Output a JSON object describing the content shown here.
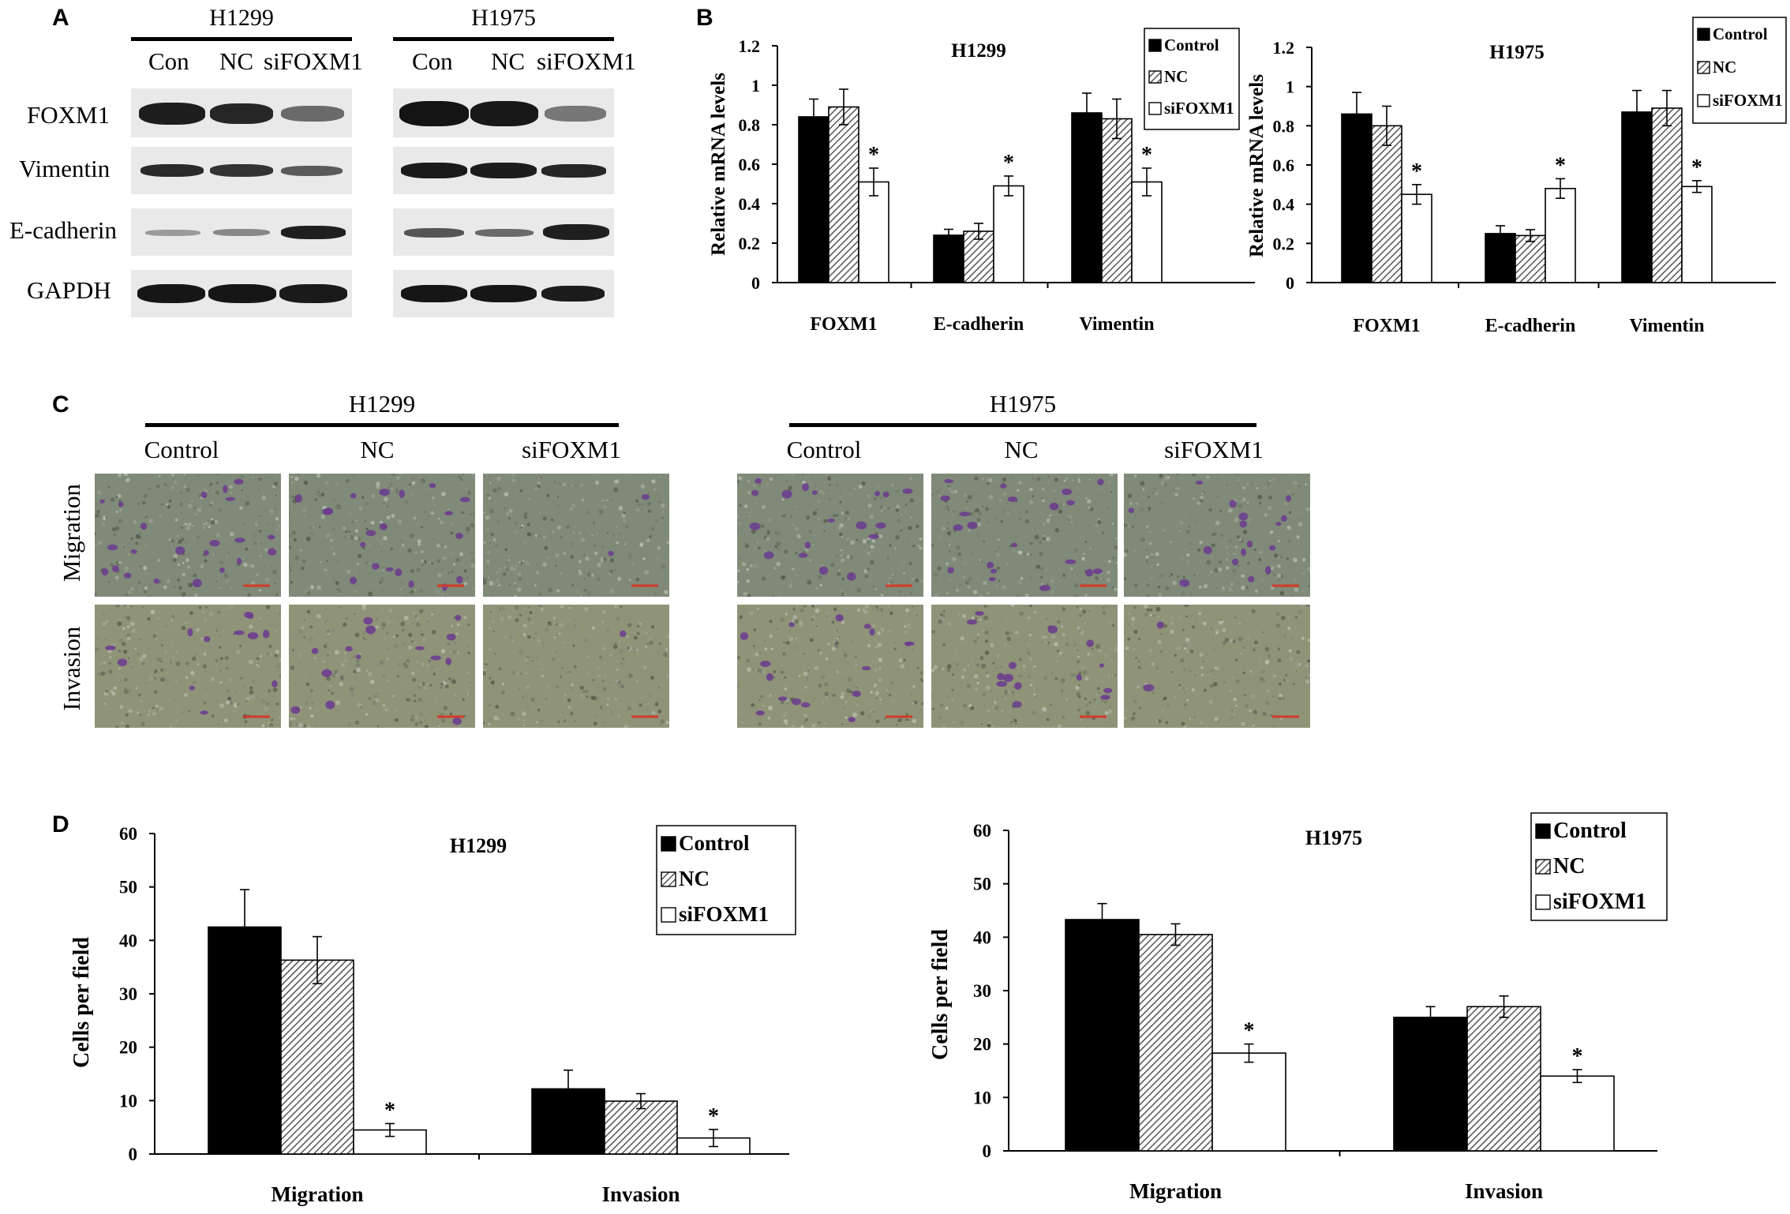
{
  "panels": {
    "A": "A",
    "B": "B",
    "C": "C",
    "D": "D"
  },
  "colors": {
    "control": "#000000",
    "nc_hatch": "#555555",
    "sifoxm1": "#ffffff",
    "crystal_violet": "#6b3a8f",
    "scale_bar": "#d23a2a"
  },
  "western_blot": {
    "cell_lines": [
      {
        "name": "H1299",
        "lanes": [
          "Con",
          "NC",
          "siFOXM1"
        ]
      },
      {
        "name": "H1975",
        "lanes": [
          "Con",
          "NC",
          "siFOXM1"
        ]
      }
    ],
    "proteins": [
      "FOXM1",
      "Vimentin",
      "E-cadherin",
      "GAPDH"
    ]
  },
  "micrographs": {
    "cell_lines": [
      "H1299",
      "H1975"
    ],
    "conditions": [
      "Control",
      "NC",
      "siFOXM1"
    ],
    "assays": [
      "Migration",
      "Invasion"
    ]
  },
  "chart_data": [
    {
      "panel": "B",
      "type": "bar",
      "title": "H1299",
      "ylabel": "Relative mRNA levels",
      "ylim": [
        0,
        1.2
      ],
      "yticks": [
        "0",
        "0.2",
        "0.4",
        "0.6",
        "0.8",
        "1",
        "1.2"
      ],
      "categories": [
        "FOXM1",
        "E-cadherin",
        "Vimentin"
      ],
      "series": [
        {
          "name": "Control",
          "values": [
            0.84,
            0.24,
            0.86
          ],
          "errors": [
            0.09,
            0.03,
            0.1
          ]
        },
        {
          "name": "NC",
          "values": [
            0.89,
            0.26,
            0.83
          ],
          "errors": [
            0.09,
            0.04,
            0.1
          ]
        },
        {
          "name": "siFOXM1",
          "values": [
            0.51,
            0.49,
            0.51
          ],
          "errors": [
            0.07,
            0.05,
            0.07
          ]
        }
      ],
      "significance": [
        "*",
        "*",
        "*"
      ],
      "legend": "top-right"
    },
    {
      "panel": "B",
      "type": "bar",
      "title": "H1975",
      "ylabel": "Relative mRNA levels",
      "ylim": [
        0,
        1.2
      ],
      "yticks": [
        "0",
        "0.2",
        "0.4",
        "0.6",
        "0.8",
        "1",
        "1.2"
      ],
      "categories": [
        "FOXM1",
        "E-cadherin",
        "Vimentin"
      ],
      "series": [
        {
          "name": "Control",
          "values": [
            0.86,
            0.25,
            0.87
          ],
          "errors": [
            0.11,
            0.04,
            0.11
          ]
        },
        {
          "name": "NC",
          "values": [
            0.8,
            0.24,
            0.89
          ],
          "errors": [
            0.1,
            0.03,
            0.09
          ]
        },
        {
          "name": "siFOXM1",
          "values": [
            0.45,
            0.48,
            0.49
          ],
          "errors": [
            0.05,
            0.05,
            0.03
          ]
        }
      ],
      "significance": [
        "*",
        "*",
        "*"
      ],
      "legend": "top-right"
    },
    {
      "panel": "D",
      "type": "bar",
      "title": "H1299",
      "ylabel": "Cells per field",
      "ylim": [
        0,
        60
      ],
      "yticks": [
        "0",
        "10",
        "20",
        "30",
        "40",
        "50",
        "60"
      ],
      "categories": [
        "Migration",
        "Invasion"
      ],
      "series": [
        {
          "name": "Control",
          "values": [
            42.5,
            12.2
          ],
          "errors": [
            7.0,
            3.5
          ]
        },
        {
          "name": "NC",
          "values": [
            36.3,
            9.9
          ],
          "errors": [
            4.4,
            1.4
          ]
        },
        {
          "name": "siFOXM1",
          "values": [
            4.5,
            3.0
          ],
          "errors": [
            1.2,
            1.6
          ]
        }
      ],
      "significance": [
        "*",
        "*"
      ],
      "legend": "top-right"
    },
    {
      "panel": "D",
      "type": "bar",
      "title": "H1975",
      "ylabel": "Cells per field",
      "ylim": [
        0,
        60
      ],
      "yticks": [
        "0",
        "10",
        "20",
        "30",
        "40",
        "50",
        "60"
      ],
      "categories": [
        "Migration",
        "Invasion"
      ],
      "series": [
        {
          "name": "Control",
          "values": [
            43.3,
            25.0
          ],
          "errors": [
            3.0,
            2.0
          ]
        },
        {
          "name": "NC",
          "values": [
            40.5,
            27.0
          ],
          "errors": [
            2.0,
            2.0
          ]
        },
        {
          "name": "siFOXM1",
          "values": [
            18.3,
            14.0
          ],
          "errors": [
            1.7,
            1.2
          ]
        }
      ],
      "significance": [
        "*",
        "*"
      ],
      "legend": "top-right"
    }
  ]
}
